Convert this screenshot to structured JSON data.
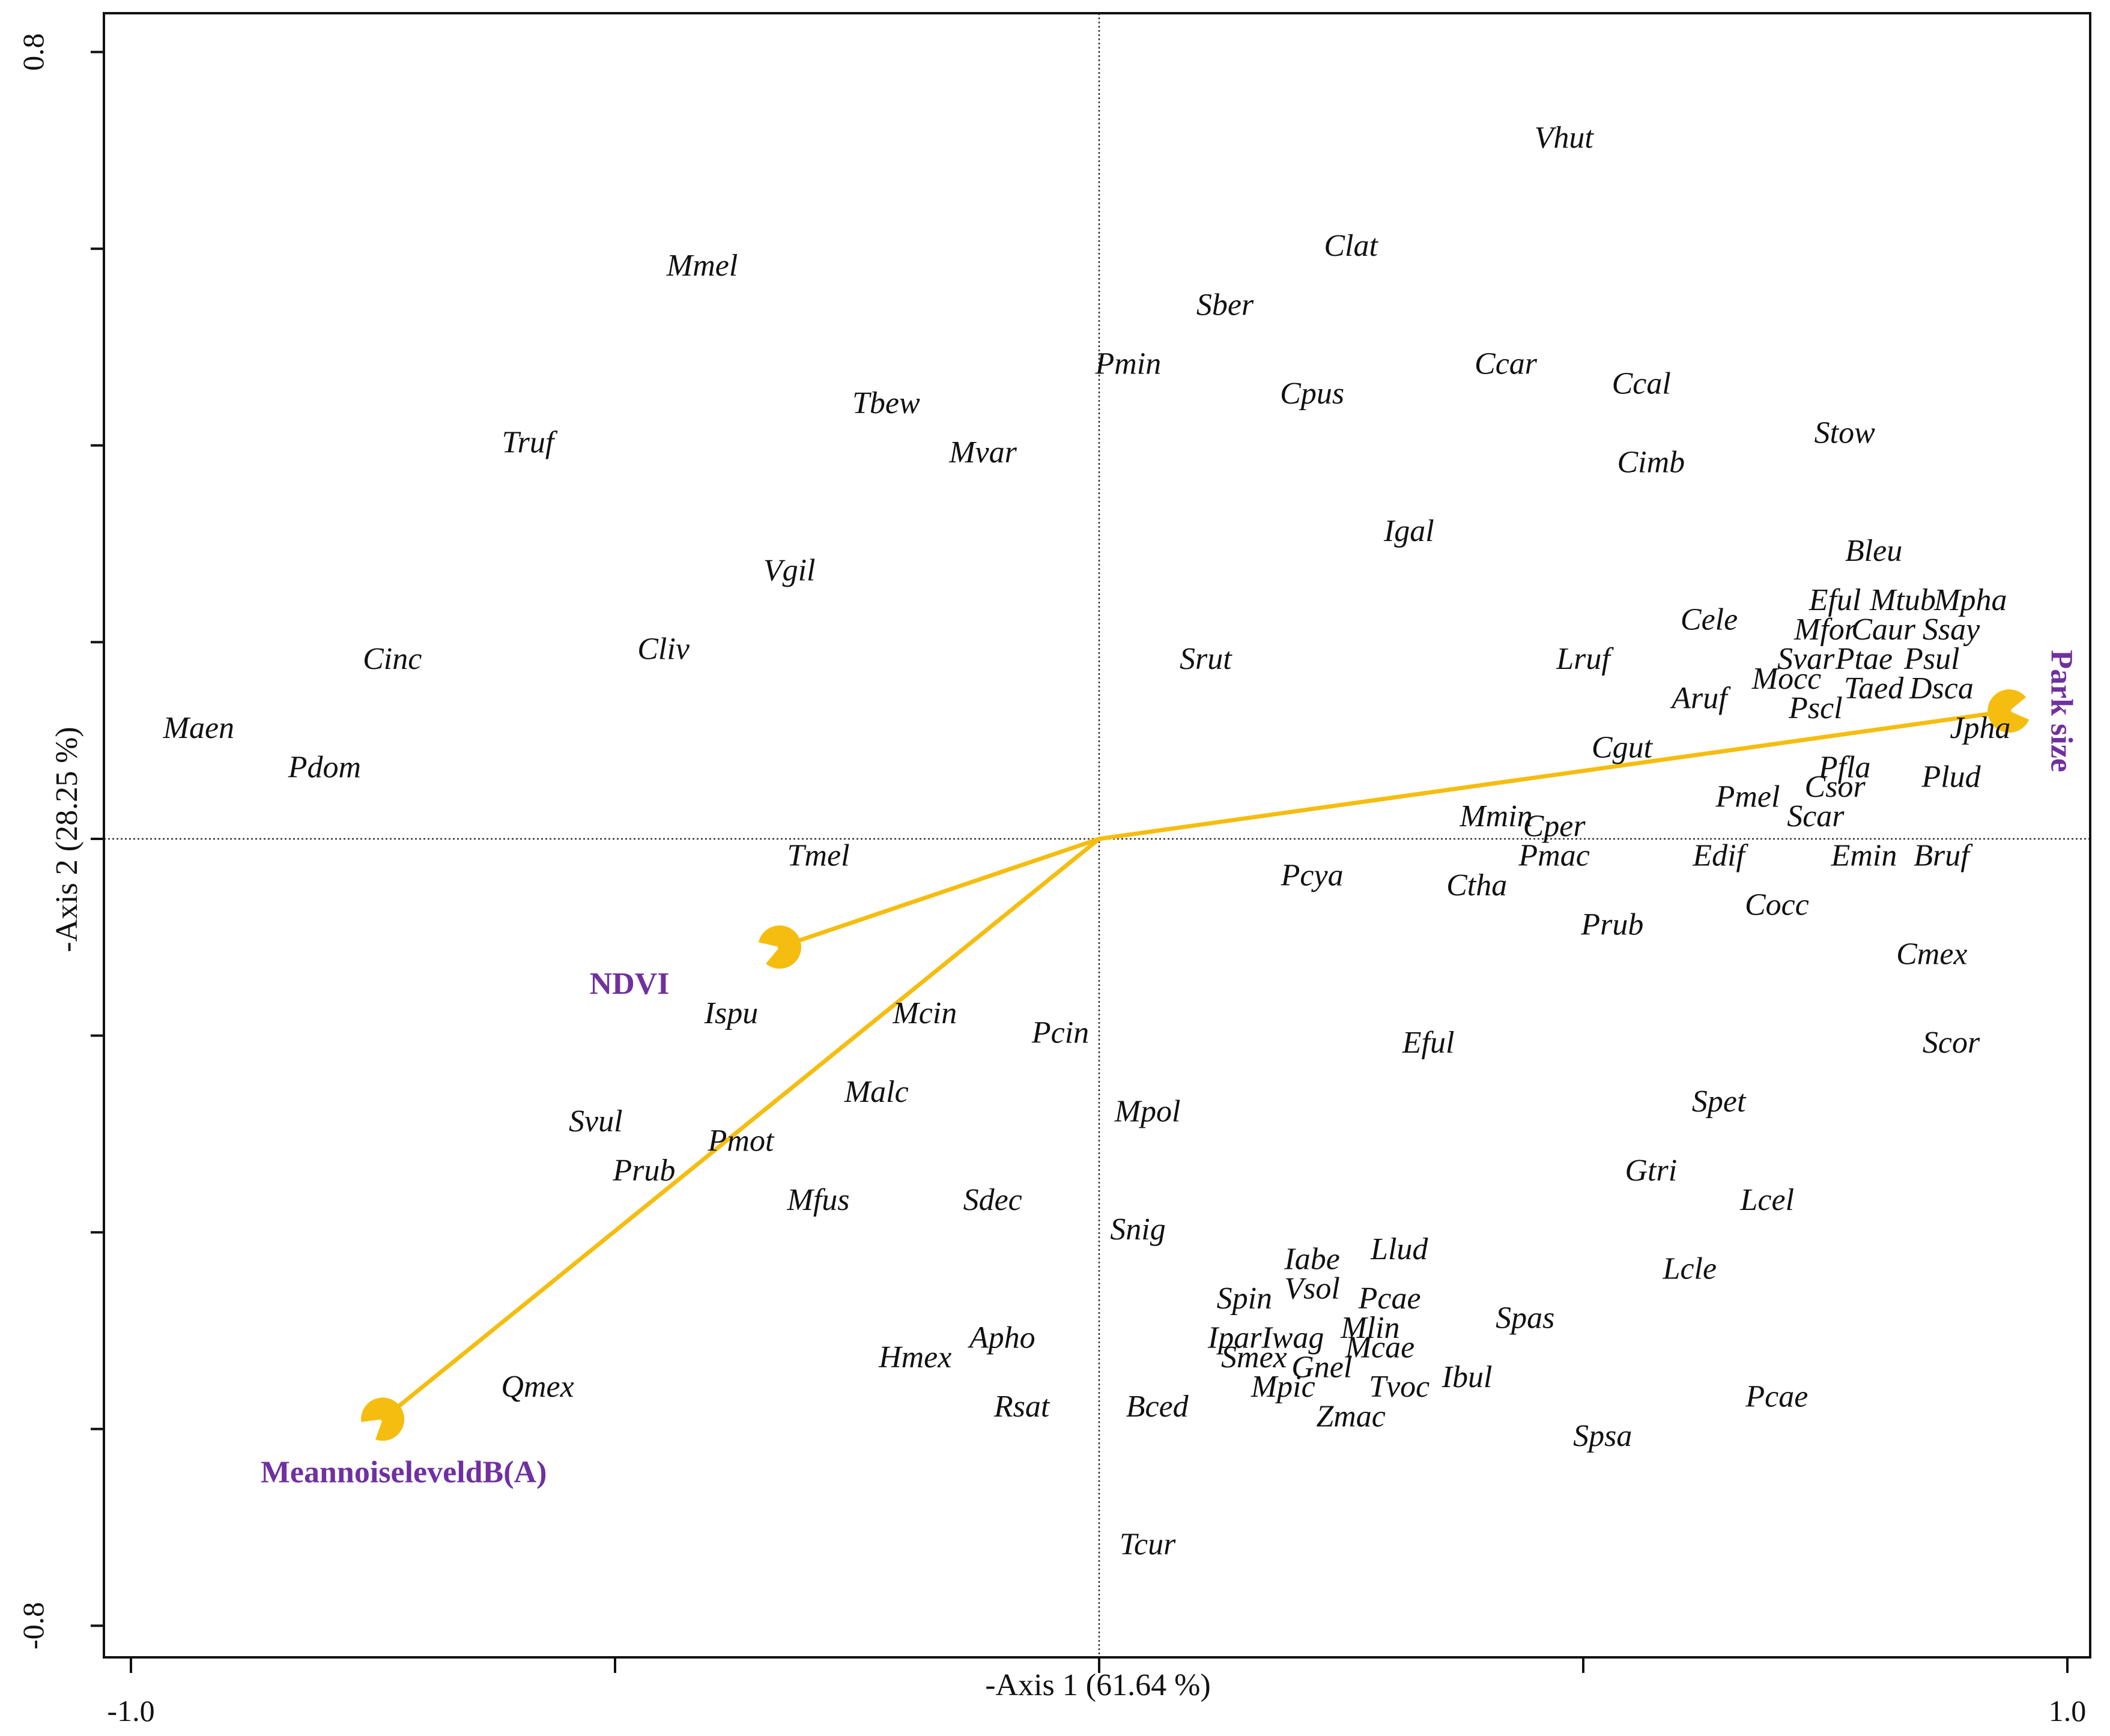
{
  "chart_data": {
    "type": "scatter",
    "title": "",
    "xlabel": "-Axis 1 (61.64 %)",
    "ylabel": "-Axis 2 (28.25 %)",
    "xlim": [
      -1.0,
      1.0
    ],
    "ylim": [
      -0.8,
      0.8
    ],
    "x_tick_labels": [
      {
        "value": -1.0,
        "label": "-1.0"
      },
      {
        "value": 1.0,
        "label": "1.0"
      }
    ],
    "y_tick_labels": [
      {
        "value": 0.8,
        "label": "0.8"
      },
      {
        "value": -0.8,
        "label": "-0.8"
      }
    ],
    "x_ticks": [
      -1.0,
      -0.5,
      0.0,
      0.5,
      1.0
    ],
    "y_ticks": [
      0.8,
      0.6,
      0.4,
      0.2,
      0.0,
      -0.2,
      -0.4,
      -0.6,
      -0.8
    ],
    "reference_lines": {
      "x": 0.0,
      "y": 0.0,
      "style": "dotted"
    },
    "colors": {
      "vectors": "#F5BD0F",
      "vector_labels": "#7030A0",
      "text": "#111111"
    },
    "environmental_vectors": [
      {
        "name": "Park size",
        "x": 0.94,
        "y": 0.13
      },
      {
        "name": "NDVI",
        "x": -0.33,
        "y": -0.11
      },
      {
        "name": "MeannoiseleveldB(A)",
        "x": -0.74,
        "y": -0.59
      }
    ],
    "species": [
      {
        "label": "Vhut",
        "x": 0.48,
        "y": 0.71
      },
      {
        "label": "Clat",
        "x": 0.26,
        "y": 0.6
      },
      {
        "label": "Mmel",
        "x": -0.41,
        "y": 0.58
      },
      {
        "label": "Sber",
        "x": 0.13,
        "y": 0.54
      },
      {
        "label": "Pmin",
        "x": 0.03,
        "y": 0.48
      },
      {
        "label": "Ccar",
        "x": 0.42,
        "y": 0.48
      },
      {
        "label": "Ccal",
        "x": 0.56,
        "y": 0.46
      },
      {
        "label": "Cpus",
        "x": 0.22,
        "y": 0.45
      },
      {
        "label": "Tbew",
        "x": -0.22,
        "y": 0.44
      },
      {
        "label": "Stow",
        "x": 0.77,
        "y": 0.41
      },
      {
        "label": "Truf",
        "x": -0.59,
        "y": 0.4
      },
      {
        "label": "Mvar",
        "x": -0.12,
        "y": 0.39
      },
      {
        "label": "Cimb",
        "x": 0.57,
        "y": 0.38
      },
      {
        "label": "Igal",
        "x": 0.32,
        "y": 0.31
      },
      {
        "label": "Bleu",
        "x": 0.8,
        "y": 0.29
      },
      {
        "label": "Vgil",
        "x": -0.32,
        "y": 0.27
      },
      {
        "label": "Eful",
        "x": 0.76,
        "y": 0.24
      },
      {
        "label": "Mtub",
        "x": 0.83,
        "y": 0.24
      },
      {
        "label": "Mpha",
        "x": 0.9,
        "y": 0.24
      },
      {
        "label": "Cele",
        "x": 0.63,
        "y": 0.22
      },
      {
        "label": "Mfor",
        "x": 0.75,
        "y": 0.21
      },
      {
        "label": "Caur",
        "x": 0.81,
        "y": 0.21
      },
      {
        "label": "Ssay",
        "x": 0.88,
        "y": 0.21
      },
      {
        "label": "Svar",
        "x": 0.73,
        "y": 0.18
      },
      {
        "label": "Ptae",
        "x": 0.79,
        "y": 0.18
      },
      {
        "label": "Psul",
        "x": 0.86,
        "y": 0.18
      },
      {
        "label": "Cinc",
        "x": -0.73,
        "y": 0.18
      },
      {
        "label": "Cliv",
        "x": -0.45,
        "y": 0.19
      },
      {
        "label": "Srut",
        "x": 0.11,
        "y": 0.18
      },
      {
        "label": "Lruf",
        "x": 0.5,
        "y": 0.18
      },
      {
        "label": "Mocc",
        "x": 0.71,
        "y": 0.16
      },
      {
        "label": "Taed",
        "x": 0.8,
        "y": 0.15
      },
      {
        "label": "Dsca",
        "x": 0.87,
        "y": 0.15
      },
      {
        "label": "Aruf",
        "x": 0.62,
        "y": 0.14
      },
      {
        "label": "Pscl",
        "x": 0.74,
        "y": 0.13
      },
      {
        "label": "Maen",
        "x": -0.93,
        "y": 0.11
      },
      {
        "label": "Jpha",
        "x": 0.91,
        "y": 0.11
      },
      {
        "label": "Cgut",
        "x": 0.54,
        "y": 0.09
      },
      {
        "label": "Pdom",
        "x": -0.8,
        "y": 0.07
      },
      {
        "label": "Pfla",
        "x": 0.77,
        "y": 0.07
      },
      {
        "label": "Plud",
        "x": 0.88,
        "y": 0.06
      },
      {
        "label": "Csor",
        "x": 0.76,
        "y": 0.05
      },
      {
        "label": "Pmel",
        "x": 0.67,
        "y": 0.04
      },
      {
        "label": "Mmin",
        "x": 0.41,
        "y": 0.02
      },
      {
        "label": "Scar",
        "x": 0.74,
        "y": 0.02
      },
      {
        "label": "Cper",
        "x": 0.47,
        "y": 0.01
      },
      {
        "label": "Tmel",
        "x": -0.29,
        "y": -0.02
      },
      {
        "label": "Pmac",
        "x": 0.47,
        "y": -0.02
      },
      {
        "label": "Edif",
        "x": 0.64,
        "y": -0.02
      },
      {
        "label": "Emin",
        "x": 0.79,
        "y": -0.02
      },
      {
        "label": "Bruf",
        "x": 0.87,
        "y": -0.02
      },
      {
        "label": "Pcya",
        "x": 0.22,
        "y": -0.04
      },
      {
        "label": "Ctha",
        "x": 0.39,
        "y": -0.05
      },
      {
        "label": "Cocc",
        "x": 0.7,
        "y": -0.07
      },
      {
        "label": "Prub",
        "x": 0.53,
        "y": -0.09
      },
      {
        "label": "Cmex",
        "x": 0.86,
        "y": -0.12
      },
      {
        "label": "Ispu",
        "x": -0.38,
        "y": -0.18
      },
      {
        "label": "Mcin",
        "x": -0.18,
        "y": -0.18
      },
      {
        "label": "Pcin",
        "x": -0.04,
        "y": -0.2
      },
      {
        "label": "Eful",
        "x": 0.34,
        "y": -0.21
      },
      {
        "label": "Scor",
        "x": 0.88,
        "y": -0.21
      },
      {
        "label": "Malc",
        "x": -0.23,
        "y": -0.26
      },
      {
        "label": "Spet",
        "x": 0.64,
        "y": -0.27
      },
      {
        "label": "Mpol",
        "x": 0.05,
        "y": -0.28
      },
      {
        "label": "Svul",
        "x": -0.52,
        "y": -0.29
      },
      {
        "label": "Pmot",
        "x": -0.37,
        "y": -0.31
      },
      {
        "label": "Gtri",
        "x": 0.57,
        "y": -0.34
      },
      {
        "label": "Prub",
        "x": -0.47,
        "y": -0.34
      },
      {
        "label": "Mfus",
        "x": -0.29,
        "y": -0.37
      },
      {
        "label": "Sdec",
        "x": -0.11,
        "y": -0.37
      },
      {
        "label": "Lcel",
        "x": 0.69,
        "y": -0.37
      },
      {
        "label": "Snig",
        "x": 0.04,
        "y": -0.4
      },
      {
        "label": "Llud",
        "x": 0.31,
        "y": -0.42
      },
      {
        "label": "Iabe",
        "x": 0.22,
        "y": -0.43
      },
      {
        "label": "Lcle",
        "x": 0.61,
        "y": -0.44
      },
      {
        "label": "Vsol",
        "x": 0.22,
        "y": -0.46
      },
      {
        "label": "Spin",
        "x": 0.15,
        "y": -0.47
      },
      {
        "label": "Pcae",
        "x": 0.3,
        "y": -0.47
      },
      {
        "label": "Spas",
        "x": 0.44,
        "y": -0.49
      },
      {
        "label": "Mlin",
        "x": 0.28,
        "y": -0.5
      },
      {
        "label": "Apho",
        "x": -0.1,
        "y": -0.51
      },
      {
        "label": "Ipar",
        "x": 0.14,
        "y": -0.51
      },
      {
        "label": "Iwag",
        "x": 0.2,
        "y": -0.51
      },
      {
        "label": "Mcae",
        "x": 0.29,
        "y": -0.52
      },
      {
        "label": "Hmex",
        "x": -0.19,
        "y": -0.53
      },
      {
        "label": "Smex",
        "x": 0.16,
        "y": -0.53
      },
      {
        "label": "Gnel",
        "x": 0.23,
        "y": -0.54
      },
      {
        "label": "Qmex",
        "x": -0.58,
        "y": -0.56
      },
      {
        "label": "Mpic",
        "x": 0.19,
        "y": -0.56
      },
      {
        "label": "Tvoc",
        "x": 0.31,
        "y": -0.56
      },
      {
        "label": "Ibul",
        "x": 0.38,
        "y": -0.55
      },
      {
        "label": "Bced",
        "x": 0.06,
        "y": -0.58
      },
      {
        "label": "Rsat",
        "x": -0.08,
        "y": -0.58
      },
      {
        "label": "Zmac",
        "x": 0.26,
        "y": -0.59
      },
      {
        "label": "Pcae",
        "x": 0.7,
        "y": -0.57
      },
      {
        "label": "Spsa",
        "x": 0.52,
        "y": -0.61
      },
      {
        "label": "Tcur",
        "x": 0.05,
        "y": -0.72
      }
    ]
  }
}
